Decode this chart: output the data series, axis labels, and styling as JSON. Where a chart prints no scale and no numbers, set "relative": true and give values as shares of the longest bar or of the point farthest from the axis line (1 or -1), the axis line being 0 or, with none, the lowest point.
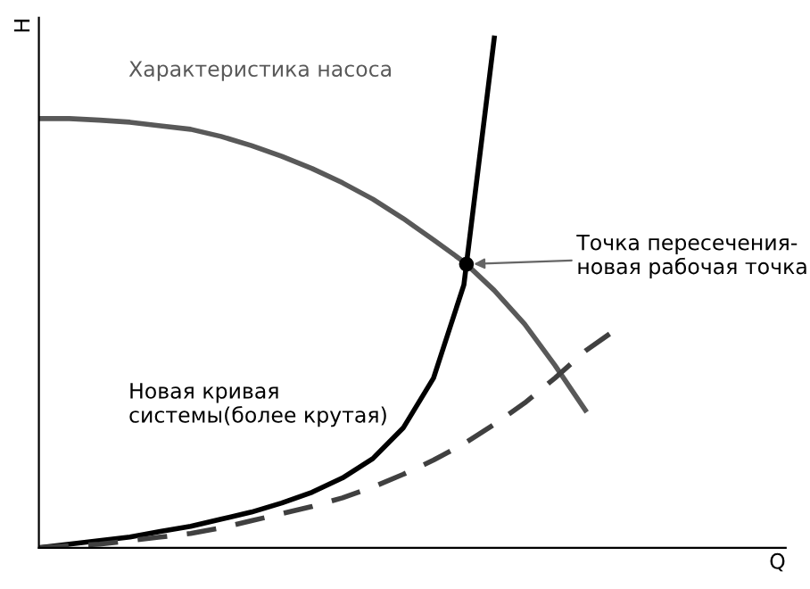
{
  "chart_data": {
    "type": "line",
    "relative": true,
    "xlabel": "Q",
    "ylabel": "H",
    "categories": [
      null,
      null,
      null,
      null,
      null,
      null,
      null,
      null,
      null,
      null,
      null,
      null,
      null,
      null,
      null,
      null,
      null,
      null,
      null,
      null,
      null,
      null,
      null,
      null,
      null
    ],
    "series": [
      {
        "name": "Характеристика насоса",
        "color": "#595959",
        "line_style": "solid",
        "values": [
          0.842,
          0.842,
          0.839,
          0.835,
          0.828,
          0.821,
          0.807,
          0.789,
          0.768,
          0.744,
          0.716,
          0.684,
          0.646,
          0.604,
          0.561,
          0.505,
          0.439,
          0.358,
          0.27,
          null,
          null,
          null,
          null,
          null,
          null
        ]
      },
      {
        "name": "Новая кривая\nсистемы(более крутая)",
        "color": "#000000",
        "line_style": "solid",
        "values": [
          0,
          0.007,
          0.014,
          0.021,
          0.032,
          0.042,
          0.056,
          0.07,
          0.088,
          0.109,
          0.137,
          0.175,
          0.235,
          0.333,
          0.516,
          1.0,
          null,
          null,
          null,
          null,
          null,
          null,
          null,
          null,
          null
        ]
      },
      {
        "color": "#404040",
        "line_style": "dashed",
        "values": [
          0,
          0.004,
          0.007,
          0.014,
          0.021,
          0.028,
          0.039,
          0.053,
          0.067,
          0.081,
          0.098,
          0.119,
          0.144,
          0.172,
          0.204,
          0.242,
          0.284,
          0.333,
          0.386,
          0.428,
          null,
          null,
          null,
          null,
          null
        ]
      }
    ],
    "annotations": [
      "Точка пересечения-\nновая рабочая точка"
    ],
    "legend": false
  }
}
